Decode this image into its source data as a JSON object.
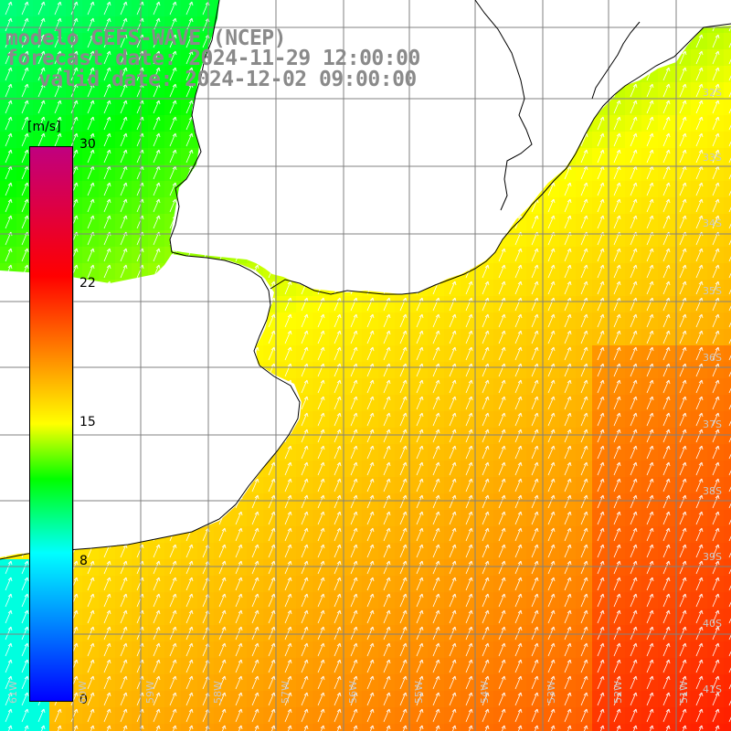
{
  "title": {
    "line1": "modelo GEFS-WAVE (NCEP)",
    "line2": "forecast date: 2024-11-29 12:00:00",
    "line3": "valid date: 2024-12-02 09:00:00"
  },
  "colorbar": {
    "unit": "[m/s]",
    "ticks": [
      "30",
      "22",
      "15",
      "8",
      "0"
    ],
    "min": 0,
    "max": 30,
    "colors": [
      "#0000ff",
      "#00ffff",
      "#00ff00",
      "#ffff00",
      "#ff7f00",
      "#ff0000",
      "#c0007f"
    ]
  },
  "lat_labels": [
    "32S",
    "33S",
    "34S",
    "35S",
    "36S",
    "37S",
    "38S",
    "39S",
    "40S",
    "41S"
  ],
  "lon_labels": [
    "61W",
    "60W",
    "59W",
    "58W",
    "57W",
    "56W",
    "55W",
    "54W",
    "53W",
    "52W",
    "51W"
  ],
  "colors": {
    "land": "#ffffff",
    "coast": "#000000",
    "grid": "#808080",
    "arrows": "#ffffff",
    "title_text": "#8a8a8a"
  }
}
